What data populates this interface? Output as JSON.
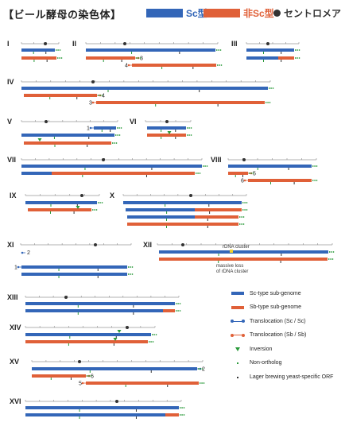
{
  "title": "【ビール酵母の染色体】",
  "legend_top": {
    "sc_label": "Sc型",
    "sb_label": "非Sc型",
    "centromere_label": "セントロメア",
    "sc_color": "#3366b8",
    "sb_color": "#e06038",
    "centromere_color": "#333333"
  },
  "legend_bottom": [
    {
      "key": "sc",
      "icon": "blue-bar-icon",
      "label": "Sc-type sub-genome"
    },
    {
      "key": "sb",
      "icon": "red-bar-icon",
      "label": "Sb-type sub-genome"
    },
    {
      "key": "tsc",
      "icon": "blue-translocation-icon",
      "label": "Translocation (Sc / Sc)"
    },
    {
      "key": "tsb",
      "icon": "red-translocation-icon",
      "label": "Translocation (Sb / Sb)"
    },
    {
      "key": "inv",
      "icon": "green-triangle-icon",
      "label": "Inversion"
    },
    {
      "key": "non",
      "icon": "green-dot-icon",
      "label": "Non-ortholog"
    },
    {
      "key": "lager",
      "icon": "black-dot-icon",
      "label": "Lager brewing yeast-specific ORF"
    }
  ],
  "annotations": {
    "rdna": "rDNA cluster",
    "massive_line1": "massive loss",
    "massive_line2": "of rDNA cluster"
  },
  "chromosomes": [
    {
      "id": "I",
      "label": "I",
      "bars": [
        {
          "type": "sc"
        },
        {
          "type": "sb"
        }
      ]
    },
    {
      "id": "II",
      "label": "II",
      "bars": [
        {
          "type": "sc"
        },
        {
          "type": "sb",
          "right_tag": "3"
        },
        {
          "type": "sb",
          "left_tag": "4"
        }
      ]
    },
    {
      "id": "III",
      "label": "III",
      "bars": [
        {
          "type": "sc"
        },
        {
          "type": "mix"
        }
      ]
    },
    {
      "id": "IV",
      "label": "IV",
      "bars": [
        {
          "type": "sc"
        },
        {
          "type": "sb",
          "right_tag": "4"
        },
        {
          "type": "sb",
          "left_tag": "3"
        }
      ]
    },
    {
      "id": "V",
      "label": "V",
      "bars": [
        {
          "type": "sc",
          "left_tag": "1"
        },
        {
          "type": "sc"
        },
        {
          "type": "sb"
        }
      ]
    },
    {
      "id": "VI",
      "label": "VI",
      "bars": [
        {
          "type": "sc"
        },
        {
          "type": "sb"
        }
      ]
    },
    {
      "id": "VII",
      "label": "VII",
      "bars": [
        {
          "type": "sc"
        },
        {
          "type": "mix"
        }
      ]
    },
    {
      "id": "VIII",
      "label": "VIII",
      "bars": [
        {
          "type": "sc"
        },
        {
          "type": "sb",
          "right_tag": "5"
        },
        {
          "type": "sb",
          "left_tag": "6"
        }
      ]
    },
    {
      "id": "IX",
      "label": "IX",
      "bars": [
        {
          "type": "sc"
        },
        {
          "type": "sb"
        }
      ]
    },
    {
      "id": "X",
      "label": "X",
      "bars": [
        {
          "type": "sc"
        },
        {
          "type": "mix"
        },
        {
          "type": "mix"
        },
        {
          "type": "sb"
        }
      ]
    },
    {
      "id": "XI",
      "label": "XI",
      "bars": [
        {
          "type": "sc",
          "right_tag_only": "2"
        },
        {
          "type": "sc",
          "left_tag": "1"
        },
        {
          "type": "sc"
        },
        {
          "type": "mix"
        }
      ]
    },
    {
      "id": "XII",
      "label": "XII",
      "bars": [
        {
          "type": "sc"
        },
        {
          "type": "sb"
        }
      ]
    },
    {
      "id": "XIII",
      "label": "XIII",
      "bars": [
        {
          "type": "sc"
        },
        {
          "type": "mix"
        }
      ]
    },
    {
      "id": "XIV",
      "label": "XIV",
      "bars": [
        {
          "type": "sc"
        },
        {
          "type": "sb"
        }
      ]
    },
    {
      "id": "XV",
      "label": "XV",
      "bars": [
        {
          "type": "sc",
          "right_tag": "2"
        },
        {
          "type": "sb",
          "right_tag": "6"
        },
        {
          "type": "sb",
          "left_tag": "5"
        }
      ]
    },
    {
      "id": "XVI",
      "label": "XVI",
      "bars": [
        {
          "type": "sc"
        },
        {
          "type": "mix"
        }
      ]
    }
  ]
}
